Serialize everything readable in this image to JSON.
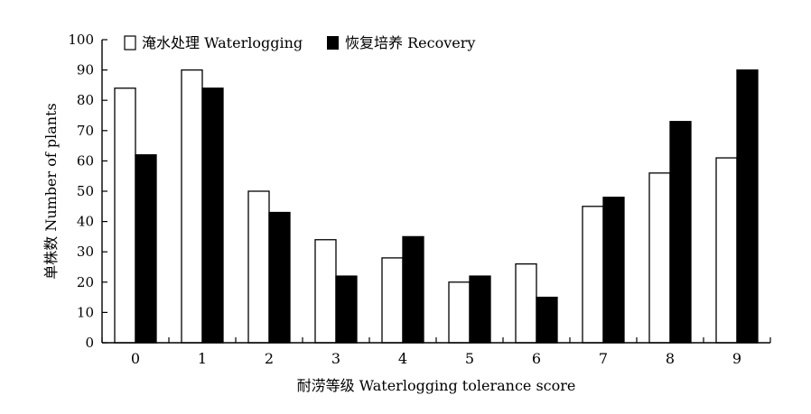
{
  "chart_data": {
    "type": "bar",
    "categories": [
      "0",
      "1",
      "2",
      "3",
      "4",
      "5",
      "6",
      "7",
      "8",
      "9"
    ],
    "series": [
      {
        "name": "淹水处理 Waterlogging",
        "values": [
          84,
          90,
          50,
          34,
          28,
          20,
          26,
          45,
          56,
          61
        ],
        "color": "#ffffff"
      },
      {
        "name": "恢复培养 Recovery",
        "values": [
          62,
          84,
          43,
          22,
          35,
          22,
          15,
          48,
          73,
          90
        ],
        "color": "#000000"
      }
    ],
    "xlabel": "耐涝等级 Waterlogging tolerance score",
    "ylabel": "单株数 Number of plants",
    "ylim": [
      0,
      100
    ],
    "yticks": [
      "0",
      "10",
      "20",
      "30",
      "40",
      "50",
      "60",
      "70",
      "80",
      "90",
      "100"
    ],
    "legend_position": "top-left",
    "grid": false,
    "ylabel_color": "#7a3b1c"
  }
}
